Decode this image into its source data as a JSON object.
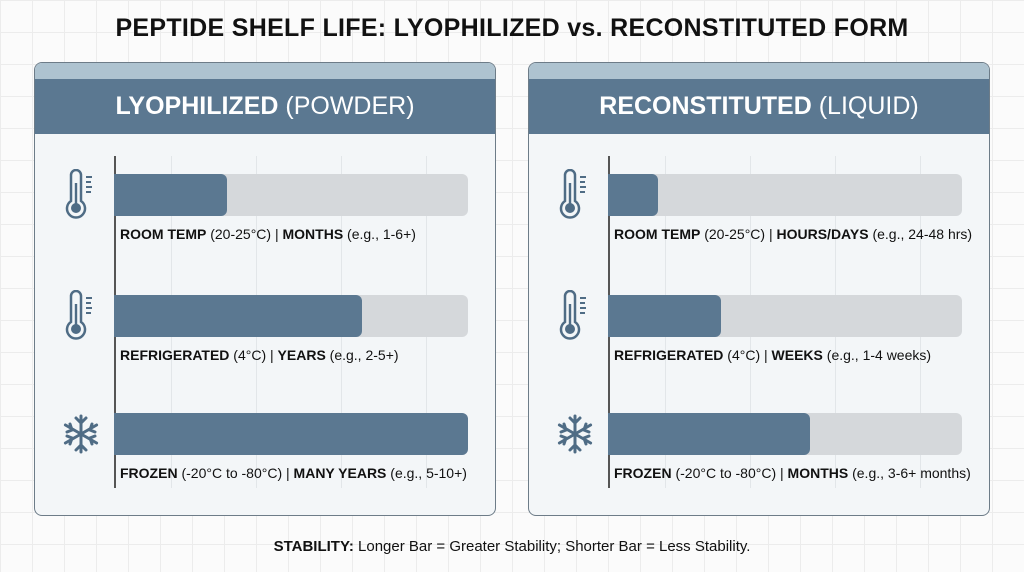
{
  "title": "PEPTIDE SHELF LIFE: LYOPHILIZED vs. RECONSTITUTED FORM",
  "footer": {
    "bold": "STABILITY:",
    "text": " Longer Bar = Greater Stability; Shorter Bar = Less Stability."
  },
  "colors": {
    "bar_fill": "#5b7891",
    "bar_track": "#d5d8db",
    "header": "#5b7891",
    "header_cap": "#aec3d0"
  },
  "chart_data": [
    {
      "type": "bar",
      "orientation": "horizontal",
      "title_bold": "LYOPHILIZED",
      "title_rest": " (POWDER)",
      "value_unit": "relative stability (fraction of full bar)",
      "xlim": [
        0,
        1
      ],
      "grid": true,
      "bars": [
        {
          "icon": "thermometer-icon",
          "condition": "ROOM TEMP",
          "range": " (20-25°C) | ",
          "duration": "MONTHS",
          "example": " (e.g., 1-6+)",
          "value": 0.32
        },
        {
          "icon": "thermometer-icon",
          "condition": "REFRIGERATED",
          "range": " (4°C) | ",
          "duration": "YEARS",
          "example": " (e.g., 2-5+)",
          "value": 0.7
        },
        {
          "icon": "snowflake-icon",
          "condition": "FROZEN",
          "range": " (-20°C to -80°C) | ",
          "duration": "MANY YEARS",
          "example": " (e.g., 5-10+)",
          "value": 1.0
        }
      ]
    },
    {
      "type": "bar",
      "orientation": "horizontal",
      "title_bold": "RECONSTITUTED",
      "title_rest": " (LIQUID)",
      "value_unit": "relative stability (fraction of full bar)",
      "xlim": [
        0,
        1
      ],
      "grid": true,
      "bars": [
        {
          "icon": "thermometer-icon",
          "condition": "ROOM TEMP",
          "range": " (20-25°C) | ",
          "duration": "HOURS/DAYS",
          "example": " (e.g., 24-48 hrs)",
          "value": 0.14
        },
        {
          "icon": "thermometer-icon",
          "condition": "REFRIGERATED",
          "range": " (4°C) | ",
          "duration": "WEEKS",
          "example": " (e.g., 1-4 weeks)",
          "value": 0.32
        },
        {
          "icon": "snowflake-icon",
          "condition": "FROZEN",
          "range": " (-20°C to -80°C) | ",
          "duration": "MONTHS",
          "example": " (e.g., 3-6+ months)",
          "value": 0.57
        }
      ]
    }
  ]
}
